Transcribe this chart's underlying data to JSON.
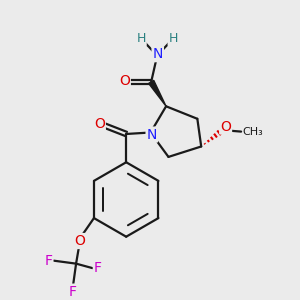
{
  "bg_color": "#ebebeb",
  "atom_colors": {
    "C": "#1a1a1a",
    "N": "#2020ff",
    "O": "#dd0000",
    "F": "#cc00cc",
    "H": "#2a8080"
  },
  "bond_color": "#1a1a1a",
  "bond_width": 1.6,
  "fig_size": [
    3.0,
    3.0
  ],
  "dpi": 100
}
